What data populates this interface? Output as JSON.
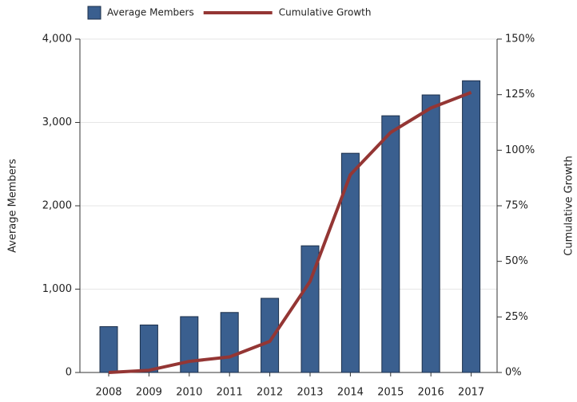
{
  "chart_data": {
    "type": "bar_line",
    "categories": [
      "2008",
      "2009",
      "2010",
      "2011",
      "2012",
      "2013",
      "2014",
      "2015",
      "2016",
      "2017"
    ],
    "series": [
      {
        "name": "Average Members",
        "type": "bar",
        "color": "#3a5f8f",
        "values": [
          550,
          570,
          670,
          720,
          890,
          1520,
          2630,
          3080,
          3330,
          3500
        ]
      },
      {
        "name": "Cumulative Growth",
        "type": "line",
        "axis": "y2",
        "color": "#943634",
        "values": [
          0,
          1,
          5,
          7,
          14,
          41,
          89,
          108,
          119,
          126
        ]
      }
    ],
    "ylabel": "Average Members",
    "y2label": "Cumulative Growth",
    "ylim": [
      0,
      4000
    ],
    "yticks": [
      0,
      {
        "value": 1000,
        "label": "1,000"
      },
      {
        "value": 2000,
        "label": "2,000"
      },
      {
        "value": 3000,
        "label": "3,000"
      },
      {
        "value": 4000,
        "label": "4,000"
      }
    ],
    "y2lim": [
      0,
      150
    ],
    "y2ticks": [
      {
        "value": 0,
        "label": "0%"
      },
      {
        "value": 25,
        "label": "25%"
      },
      {
        "value": 50,
        "label": "50%"
      },
      {
        "value": 75,
        "label": "75%"
      },
      {
        "value": 100,
        "label": "100%"
      },
      {
        "value": 125,
        "label": "125%"
      },
      {
        "value": 150,
        "label": "150%"
      }
    ],
    "grid": true,
    "legend": "top"
  }
}
